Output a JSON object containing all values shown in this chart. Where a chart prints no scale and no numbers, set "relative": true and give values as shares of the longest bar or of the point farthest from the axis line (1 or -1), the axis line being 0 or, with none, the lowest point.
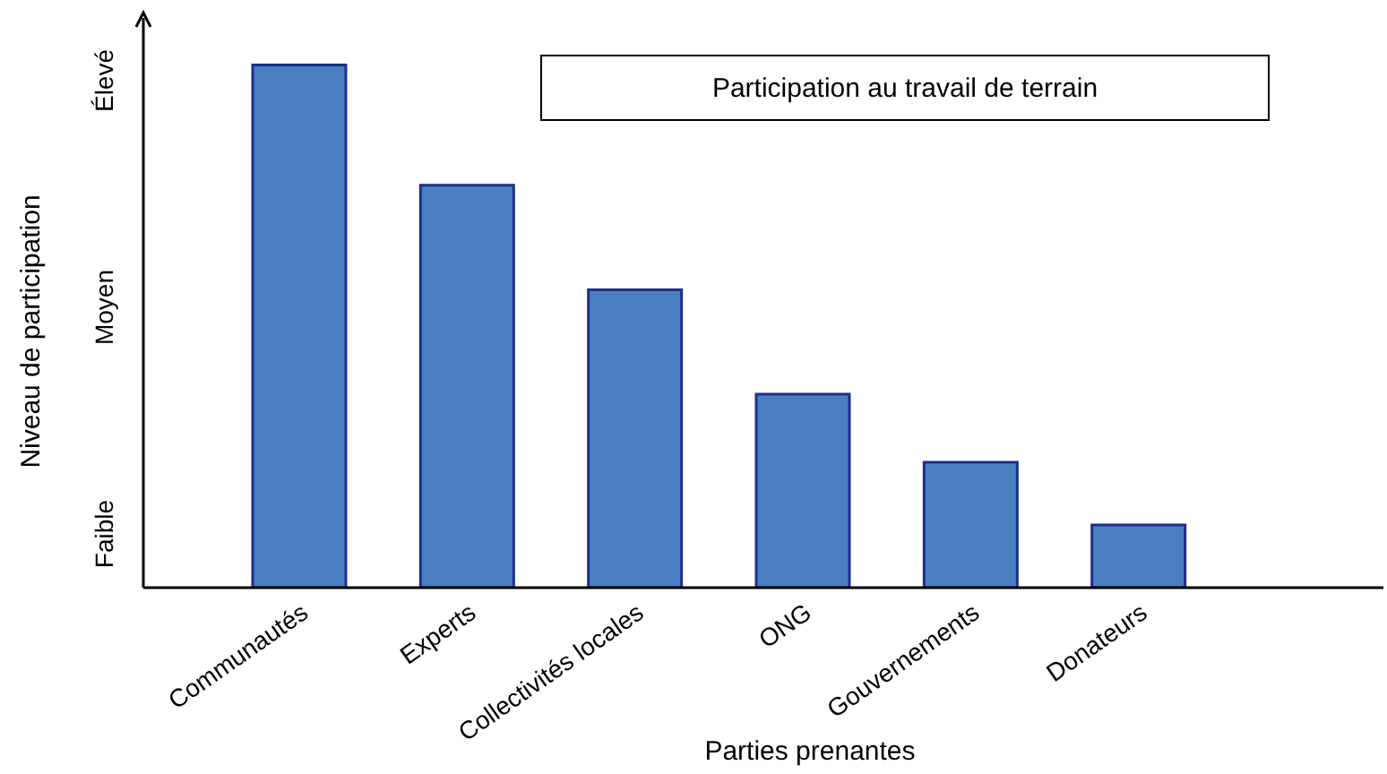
{
  "chart_data": {
    "type": "bar",
    "title": "Participation au travail de terrain",
    "xlabel": "Parties prenantes",
    "ylabel": "Niveau de participation",
    "categories": [
      "Communautés",
      "Experts",
      "Collectivités locales",
      "ONG",
      "Gouvernements",
      "Donateurs"
    ],
    "values": [
      1,
      0.77,
      0.57,
      0.37,
      0.24,
      0.12
    ],
    "relative": true,
    "color": "#4a7fc1",
    "annotations": [
      "Faible",
      "Moyen",
      "Élevé"
    ],
    "grid": false
  }
}
